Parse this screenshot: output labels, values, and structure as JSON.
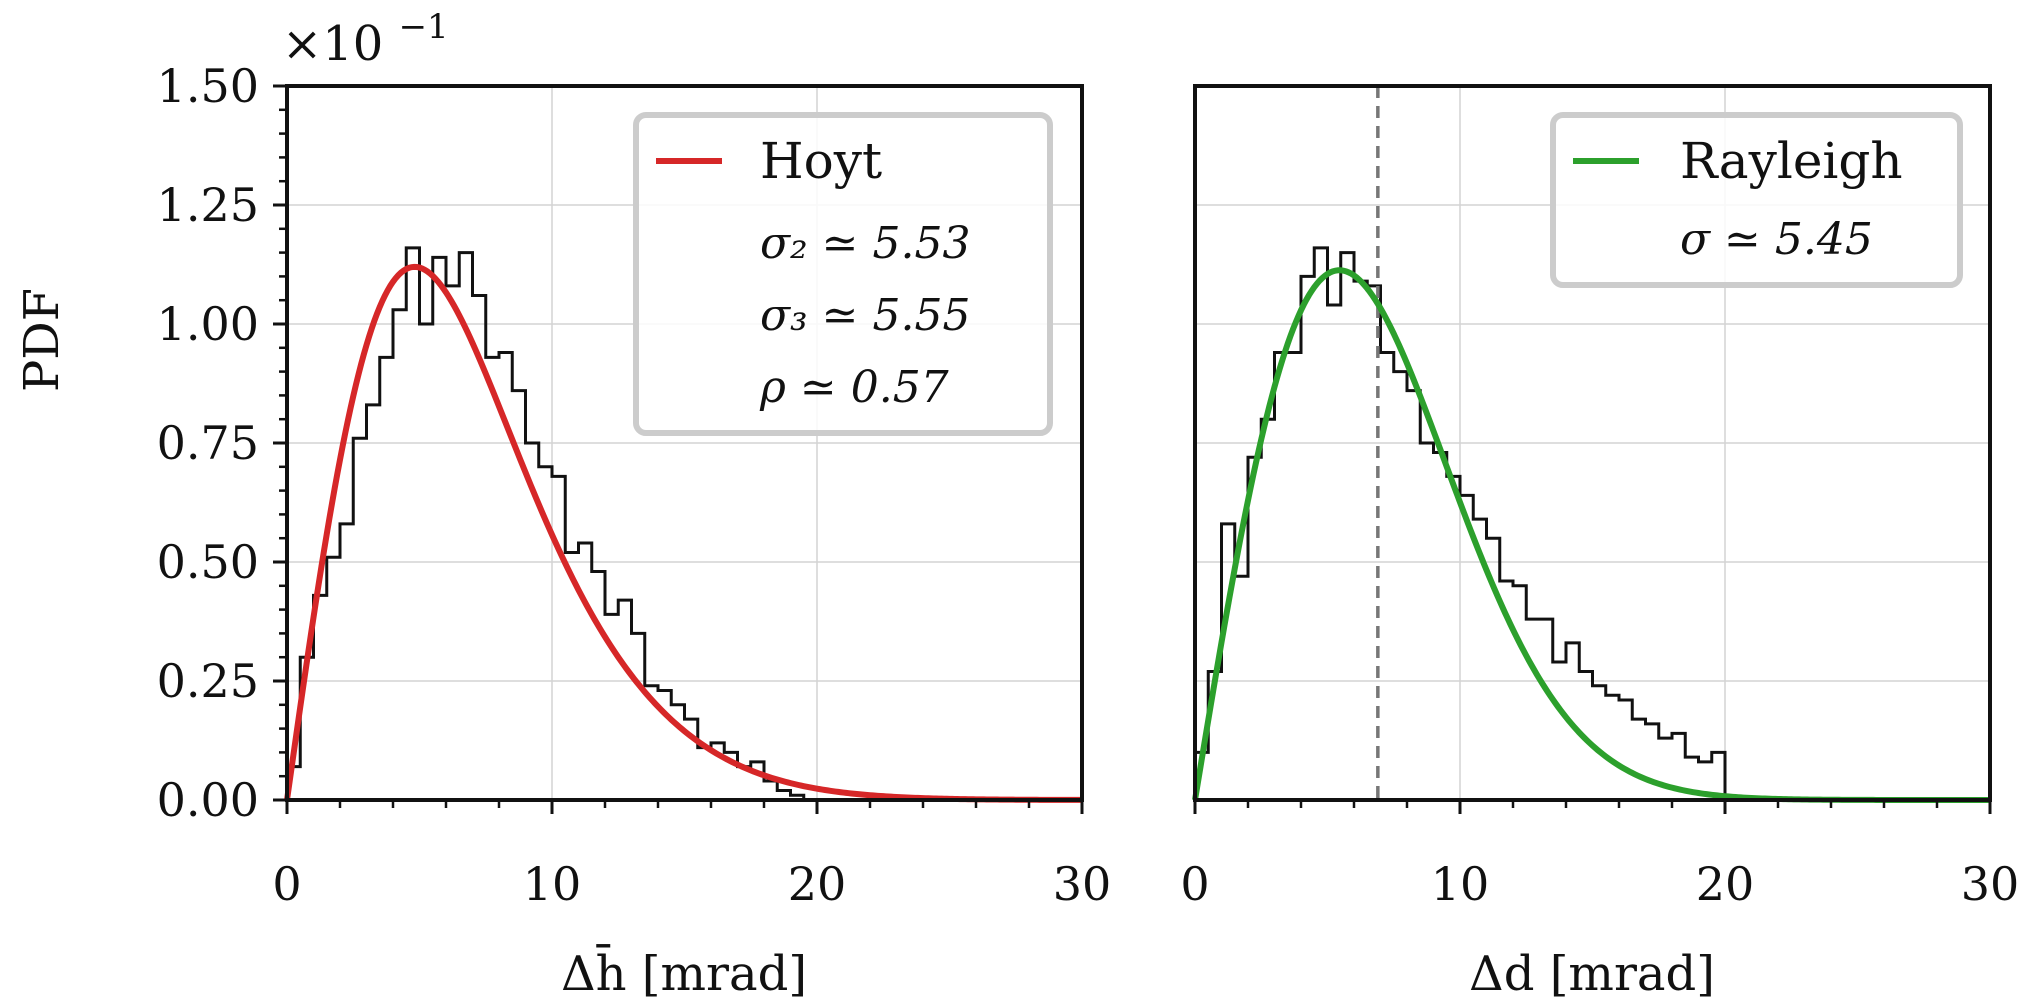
{
  "figure": {
    "ylabel": "PDF",
    "offset_text": "×10",
    "offset_exponent": "−1"
  },
  "chart_data": [
    {
      "type": "histogram",
      "panel": "left",
      "xlabel": "Δh̄ [mrad]",
      "xlim": [
        0,
        30
      ],
      "ylim": [
        0,
        1.5
      ],
      "xticks": [
        0,
        10,
        20,
        30
      ],
      "xtick_labels": [
        "0",
        "10",
        "20",
        "30"
      ],
      "yticks": [
        0,
        0.25,
        0.5,
        0.75,
        1.0,
        1.25,
        1.5
      ],
      "ytick_labels": [
        "0.00",
        "0.25",
        "0.50",
        "0.75",
        "1.00",
        "1.25",
        "1.50"
      ],
      "grid": true,
      "legend_position": "upper right",
      "histogram": {
        "bin_width": 0.5,
        "color": "#111111",
        "values": [
          0.07,
          0.3,
          0.43,
          0.51,
          0.58,
          0.76,
          0.83,
          0.93,
          1.03,
          1.16,
          1.0,
          1.14,
          1.08,
          1.15,
          1.06,
          0.93,
          0.94,
          0.86,
          0.75,
          0.7,
          0.68,
          0.52,
          0.54,
          0.48,
          0.39,
          0.42,
          0.35,
          0.24,
          0.23,
          0.2,
          0.17,
          0.11,
          0.12,
          0.1,
          0.07,
          0.08,
          0.04,
          0.02,
          0.01,
          0.0
        ]
      },
      "curve": {
        "name": "Hoyt",
        "color": "#d62728",
        "sigma2": 5.53,
        "sigma3": 5.55,
        "rho": 0.57,
        "peak_x": 4.8,
        "peak_y": 1.12
      },
      "legend": {
        "label": "Hoyt",
        "params": [
          "σ₂ ≃ 5.53",
          "σ₃ ≃ 5.55",
          "ρ ≃ 0.57"
        ]
      }
    },
    {
      "type": "histogram",
      "panel": "right",
      "xlabel": "Δd [mrad]",
      "xlim": [
        0,
        30
      ],
      "ylim": [
        0,
        1.5
      ],
      "xticks": [
        0,
        10,
        20,
        30
      ],
      "xtick_labels": [
        "0",
        "10",
        "20",
        "30"
      ],
      "grid": true,
      "legend_position": "upper right",
      "vline": {
        "x": 6.9,
        "style": "dashed",
        "color": "#777777"
      },
      "histogram": {
        "bin_width": 0.5,
        "color": "#111111",
        "values": [
          0.1,
          0.27,
          0.58,
          0.47,
          0.72,
          0.8,
          0.94,
          0.94,
          1.1,
          1.16,
          1.04,
          1.15,
          1.09,
          1.08,
          0.94,
          0.9,
          0.86,
          0.75,
          0.73,
          0.68,
          0.64,
          0.59,
          0.55,
          0.46,
          0.45,
          0.38,
          0.38,
          0.29,
          0.33,
          0.27,
          0.24,
          0.22,
          0.21,
          0.17,
          0.16,
          0.13,
          0.14,
          0.09,
          0.08,
          0.1
        ]
      },
      "curve": {
        "name": "Rayleigh",
        "color": "#2ca02c",
        "sigma": 5.45
      },
      "legend": {
        "label": "Rayleigh",
        "params": [
          "σ ≃ 5.45"
        ]
      }
    }
  ]
}
